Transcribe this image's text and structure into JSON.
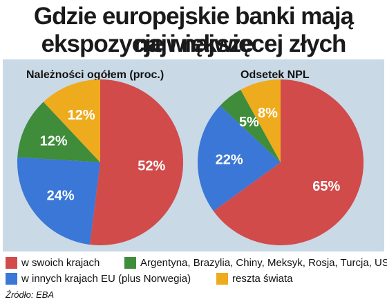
{
  "title": {
    "line1": "Gdzie europejskie banki mają największe",
    "line2": "ekspozycje i najwięcej złych kredytów"
  },
  "chart_data": [
    {
      "type": "pie",
      "title": "Należności ogółem (proc.)",
      "categories": [
        "w swoich krajach",
        "w innych krajach EU (plus Norwegia)",
        "Argentyna, Brazylia, Chiny, Meksyk, Rosja, Turcja, USA",
        "reszta świata"
      ],
      "values": [
        52,
        24,
        12,
        12
      ],
      "labels": [
        "52%",
        "24%",
        "12%",
        "12%"
      ],
      "colors": [
        "#d14b4b",
        "#3a77d6",
        "#3f8c3b",
        "#eeab1e"
      ]
    },
    {
      "type": "pie",
      "title": "Odsetek NPL",
      "categories": [
        "w swoich krajach",
        "w innych krajach EU (plus Norwegia)",
        "Argentyna, Brazylia, Chiny, Meksyk, Rosja, Turcja, USA",
        "reszta świata"
      ],
      "values": [
        65,
        22,
        5,
        8
      ],
      "labels": [
        "65%",
        "22%",
        "5%",
        "8%"
      ],
      "colors": [
        "#d14b4b",
        "#3a77d6",
        "#3f8c3b",
        "#eeab1e"
      ]
    }
  ],
  "legend": [
    {
      "label": "w swoich krajach",
      "color": "#d14b4b"
    },
    {
      "label": "Argentyna, Brazylia, Chiny, Meksyk, Rosja, Turcja, USA",
      "color": "#3f8c3b"
    },
    {
      "label": "w innych krajach EU (plus Norwegia)",
      "color": "#3a77d6"
    },
    {
      "label": "reszta świata",
      "color": "#eeab1e"
    }
  ],
  "source": "Źródło: EBA"
}
